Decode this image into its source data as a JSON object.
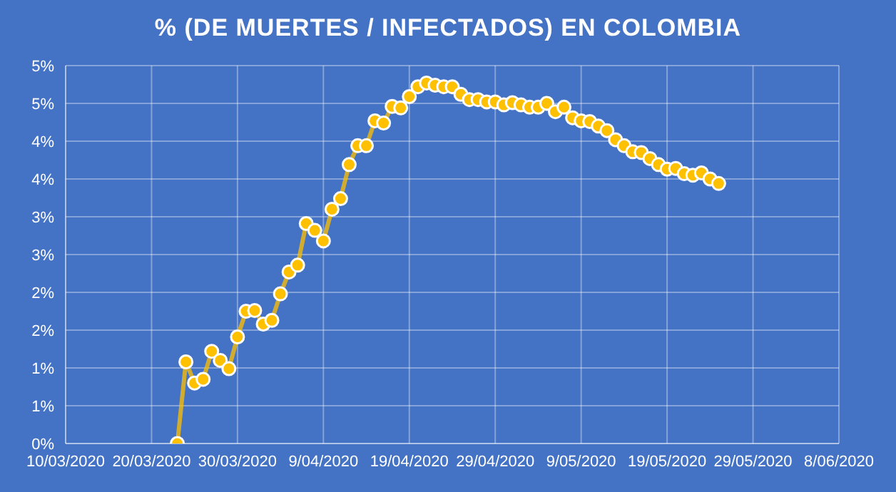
{
  "chart_data": {
    "type": "line",
    "title": "% (DE MUERTES / INFECTADOS) EN COLOMBIA",
    "x": [
      "2020-03-23",
      "2020-03-24",
      "2020-03-25",
      "2020-03-26",
      "2020-03-27",
      "2020-03-28",
      "2020-03-29",
      "2020-03-30",
      "2020-03-31",
      "2020-04-01",
      "2020-04-02",
      "2020-04-03",
      "2020-04-04",
      "2020-04-05",
      "2020-04-06",
      "2020-04-07",
      "2020-04-08",
      "2020-04-09",
      "2020-04-10",
      "2020-04-11",
      "2020-04-12",
      "2020-04-13",
      "2020-04-14",
      "2020-04-15",
      "2020-04-16",
      "2020-04-17",
      "2020-04-18",
      "2020-04-19",
      "2020-04-20",
      "2020-04-21",
      "2020-04-22",
      "2020-04-23",
      "2020-04-24",
      "2020-04-25",
      "2020-04-26",
      "2020-04-27",
      "2020-04-28",
      "2020-04-29",
      "2020-04-30",
      "2020-05-01",
      "2020-05-02",
      "2020-05-03",
      "2020-05-04",
      "2020-05-05",
      "2020-05-06",
      "2020-05-07",
      "2020-05-08",
      "2020-05-09",
      "2020-05-10",
      "2020-05-11",
      "2020-05-12",
      "2020-05-13",
      "2020-05-14",
      "2020-05-15",
      "2020-05-16",
      "2020-05-17",
      "2020-05-18",
      "2020-05-19",
      "2020-05-20",
      "2020-05-21",
      "2020-05-22",
      "2020-05-23",
      "2020-05-24",
      "2020-05-25"
    ],
    "series": [
      {
        "color": "#ffc000",
        "values": [
          0,
          1.08,
          0.8,
          0.85,
          1.22,
          1.1,
          0.99,
          1.41,
          1.75,
          1.76,
          1.58,
          1.63,
          1.98,
          2.27,
          2.36,
          2.91,
          2.82,
          2.68,
          3.1,
          3.24,
          3.69,
          3.94,
          3.94,
          4.27,
          4.24,
          4.46,
          4.44,
          4.59,
          4.72,
          4.77,
          4.74,
          4.72,
          4.72,
          4.62,
          4.55,
          4.55,
          4.52,
          4.52,
          4.48,
          4.51,
          4.48,
          4.45,
          4.45,
          4.5,
          4.39,
          4.45,
          4.31,
          4.27,
          4.26,
          4.2,
          4.14,
          4.02,
          3.94,
          3.86,
          3.85,
          3.77,
          3.69,
          3.63,
          3.64,
          3.57,
          3.55,
          3.58,
          3.5,
          3.44
        ]
      }
    ],
    "xlim": [
      "2020-03-10",
      "2020-06-08"
    ],
    "xticks": [
      {
        "value": "2020-03-10",
        "label": "10/03/2020"
      },
      {
        "value": "2020-03-20",
        "label": "20/03/2020"
      },
      {
        "value": "2020-03-30",
        "label": "30/03/2020"
      },
      {
        "value": "2020-04-09",
        "label": "9/04/2020"
      },
      {
        "value": "2020-04-19",
        "label": "19/04/2020"
      },
      {
        "value": "2020-04-29",
        "label": "29/04/2020"
      },
      {
        "value": "2020-05-09",
        "label": "9/05/2020"
      },
      {
        "value": "2020-05-19",
        "label": "19/05/2020"
      },
      {
        "value": "2020-05-29",
        "label": "29/05/2020"
      },
      {
        "value": "2020-06-08",
        "label": "8/06/2020"
      }
    ],
    "ylim": [
      0,
      5
    ],
    "yticks": [
      {
        "value": 0,
        "label": "0%"
      },
      {
        "value": 0.5,
        "label": "1%"
      },
      {
        "value": 1,
        "label": "1%"
      },
      {
        "value": 1.5,
        "label": "2%"
      },
      {
        "value": 2,
        "label": "2%"
      },
      {
        "value": 2.5,
        "label": "3%"
      },
      {
        "value": 3,
        "label": "3%"
      },
      {
        "value": 3.5,
        "label": "4%"
      },
      {
        "value": 4,
        "label": "4%"
      },
      {
        "value": 4.5,
        "label": "5%"
      },
      {
        "value": 5,
        "label": "5%"
      }
    ],
    "grid": true,
    "marker": "circle",
    "line_style": "solid",
    "legend": false
  }
}
